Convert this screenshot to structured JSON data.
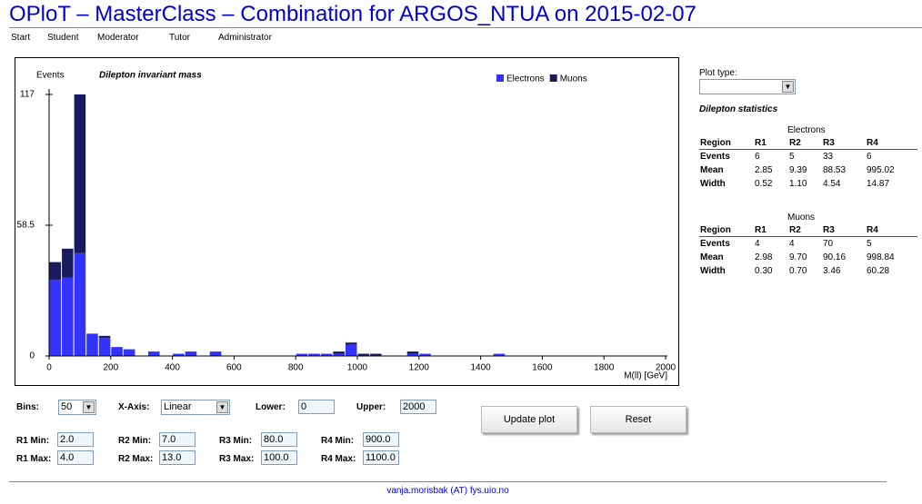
{
  "header": {
    "title": "OPloT – MasterClass – Combination for ARGOS_NTUA on 2015-02-07",
    "nav": [
      "Start",
      "Student",
      "Moderator",
      "Tutor",
      "Administrator"
    ]
  },
  "chart_data": {
    "type": "histogram",
    "title": "Dilepton invariant mass",
    "y_label": "Events",
    "x_label": "M(ll) [GeV]",
    "bins": [
      0,
      40,
      80,
      120,
      160,
      200,
      240,
      280,
      320,
      360,
      400,
      440,
      480,
      520,
      560,
      600,
      640,
      680,
      720,
      760,
      800,
      840,
      880,
      920,
      960,
      1000,
      1040,
      1080,
      1120,
      1160,
      1200,
      1240,
      1280,
      1320,
      1360,
      1400,
      1440,
      1480,
      1520,
      1560,
      1600,
      1640,
      1680,
      1720,
      1760,
      1800,
      1840,
      1880,
      1920,
      1960,
      2000
    ],
    "series": [
      {
        "name": "Electrons",
        "color": "#3333ff",
        "values": [
          34,
          35,
          46,
          10,
          8,
          4,
          3,
          0,
          2,
          0,
          1,
          2,
          0,
          2,
          0,
          0,
          0,
          0,
          0,
          0,
          1,
          1,
          1,
          1,
          5,
          0,
          0,
          0,
          0,
          1,
          1,
          0,
          0,
          0,
          0,
          0,
          1,
          0,
          0,
          0,
          0,
          0,
          0,
          0,
          0,
          0,
          0,
          0,
          0,
          0
        ]
      },
      {
        "name": "Muons",
        "color": "#1a1a5e",
        "values": [
          8,
          13,
          71,
          0,
          1,
          0,
          0,
          0,
          0,
          0,
          0,
          0,
          0,
          0,
          0,
          0,
          0,
          0,
          0,
          0,
          0,
          0,
          0,
          1,
          1,
          1,
          1,
          0,
          0,
          1,
          0,
          0,
          0,
          0,
          0,
          0,
          0,
          0,
          0,
          0,
          0,
          0,
          0,
          0,
          0,
          0,
          0,
          0,
          0,
          0
        ]
      }
    ],
    "xlim": [
      0,
      2000
    ],
    "xticks": [
      0,
      200,
      400,
      600,
      800,
      1000,
      1200,
      1400,
      1600,
      1800,
      2000
    ],
    "ylim": [
      0,
      117
    ],
    "yticks": [
      0,
      58.5,
      117
    ],
    "stacked": true
  },
  "form": {
    "bins_label": "Bins:",
    "bins": "50",
    "xaxis_label": "X-Axis:",
    "xaxis": "Linear",
    "lower_label": "Lower:",
    "lower": "0",
    "upper_label": "Upper:",
    "upper": "2000",
    "update": "Update plot",
    "reset": "Reset",
    "ranges": [
      {
        "min_label": "R1 Min:",
        "min": "2.0",
        "max_label": "R1 Max:",
        "max": "4.0"
      },
      {
        "min_label": "R2 Min:",
        "min": "7.0",
        "max_label": "R2 Max:",
        "max": "13.0"
      },
      {
        "min_label": "R3 Min:",
        "min": "80.0",
        "max_label": "R3 Max:",
        "max": "100.0"
      },
      {
        "min_label": "R4 Min:",
        "min": "900.0",
        "max_label": "R4 Max:",
        "max": "1100.0"
      }
    ]
  },
  "side": {
    "plot_type_label": "Plot type:",
    "stats_title": "Dilepton statistics",
    "tables": [
      {
        "title": "Electrons",
        "header": [
          "Region",
          "R1",
          "R2",
          "R3",
          "R4"
        ],
        "rows": [
          [
            "Events",
            "6",
            "5",
            "33",
            "6"
          ],
          [
            "Mean",
            "2.85",
            "9.39",
            "88.53",
            "995.02"
          ],
          [
            "Width",
            "0.52",
            "1.10",
            "4.54",
            "14.87"
          ]
        ]
      },
      {
        "title": "Muons",
        "header": [
          "Region",
          "R1",
          "R2",
          "R3",
          "R4"
        ],
        "rows": [
          [
            "Events",
            "4",
            "4",
            "70",
            "5"
          ],
          [
            "Mean",
            "2.98",
            "9.70",
            "90.16",
            "998.84"
          ],
          [
            "Width",
            "0.30",
            "0.70",
            "3.46",
            "60.28"
          ]
        ]
      }
    ]
  },
  "footer": "vanja.morisbak (AT) fys.uio.no"
}
